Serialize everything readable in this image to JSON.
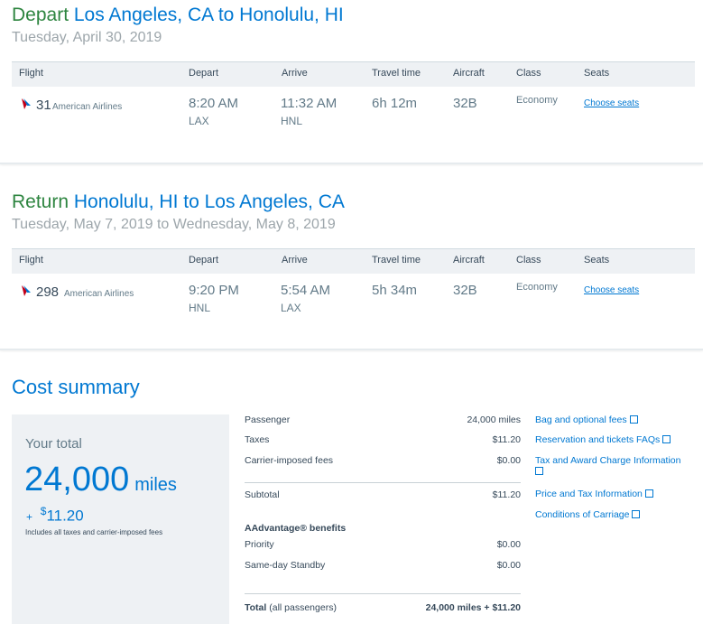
{
  "depart": {
    "keyword": "Depart",
    "route": "Los Angeles, CA to Honolulu, HI",
    "date": "Tuesday, April 30, 2019",
    "headers": [
      "Flight",
      "Depart",
      "Arrive",
      "Travel time",
      "Aircraft",
      "Class",
      "Seats"
    ],
    "flight": {
      "number": "31",
      "airline": "American Airlines",
      "depart_time": "8:20 AM",
      "depart_airport": "LAX",
      "arrive_time": "11:32 AM",
      "arrive_airport": "HNL",
      "travel_time": "6h 12m",
      "aircraft": "32B",
      "class": "Economy",
      "seats_link": "Choose seats"
    }
  },
  "return": {
    "keyword": "Return",
    "route": "Honolulu, HI to Los Angeles, CA",
    "date": "Tuesday, May 7, 2019 to Wednesday, May 8, 2019",
    "headers": [
      "Flight",
      "Depart",
      "Arrive",
      "Travel time",
      "Aircraft",
      "Class",
      "Seats"
    ],
    "flight": {
      "number": "298",
      "airline": "American Airlines",
      "depart_time": "9:20 PM",
      "depart_airport": "HNL",
      "arrive_time": "5:54 AM",
      "arrive_airport": "LAX",
      "travel_time": "5h 34m",
      "aircraft": "32B",
      "class": "Economy",
      "seats_link": "Choose seats"
    }
  },
  "cost": {
    "title": "Cost summary",
    "your_total_label": "Your total",
    "miles": "24,000",
    "miles_unit": "miles",
    "plus": "+",
    "currency": "$",
    "cash": "11.20",
    "includes_note": "Includes all taxes and carrier-imposed fees",
    "lines": [
      {
        "label": "Passenger",
        "value": "24,000 miles"
      },
      {
        "label": "Taxes",
        "value": "$11.20"
      },
      {
        "label": "Carrier-imposed fees",
        "value": "$0.00"
      }
    ],
    "subtotal": {
      "label": "Subtotal",
      "value": "$11.20"
    },
    "benefits_title": "AAdvantage® benefits",
    "benefits": [
      {
        "label": "Priority",
        "value": "$0.00"
      },
      {
        "label": "Same-day Standby",
        "value": "$0.00"
      }
    ],
    "total": {
      "label": "Total",
      "label_suffix": "(all passengers)",
      "value": "24,000 miles + $11.20"
    }
  },
  "links": [
    "Bag and optional fees",
    "Reservation and tickets FAQs",
    "Tax and Award Charge Information",
    "Price and Tax Information",
    "Conditions of Carriage"
  ],
  "colors": {
    "brand_blue": "#0078d2",
    "green": "#2e8540",
    "panel_gray": "#eef1f4",
    "text_dark": "#36495a"
  }
}
